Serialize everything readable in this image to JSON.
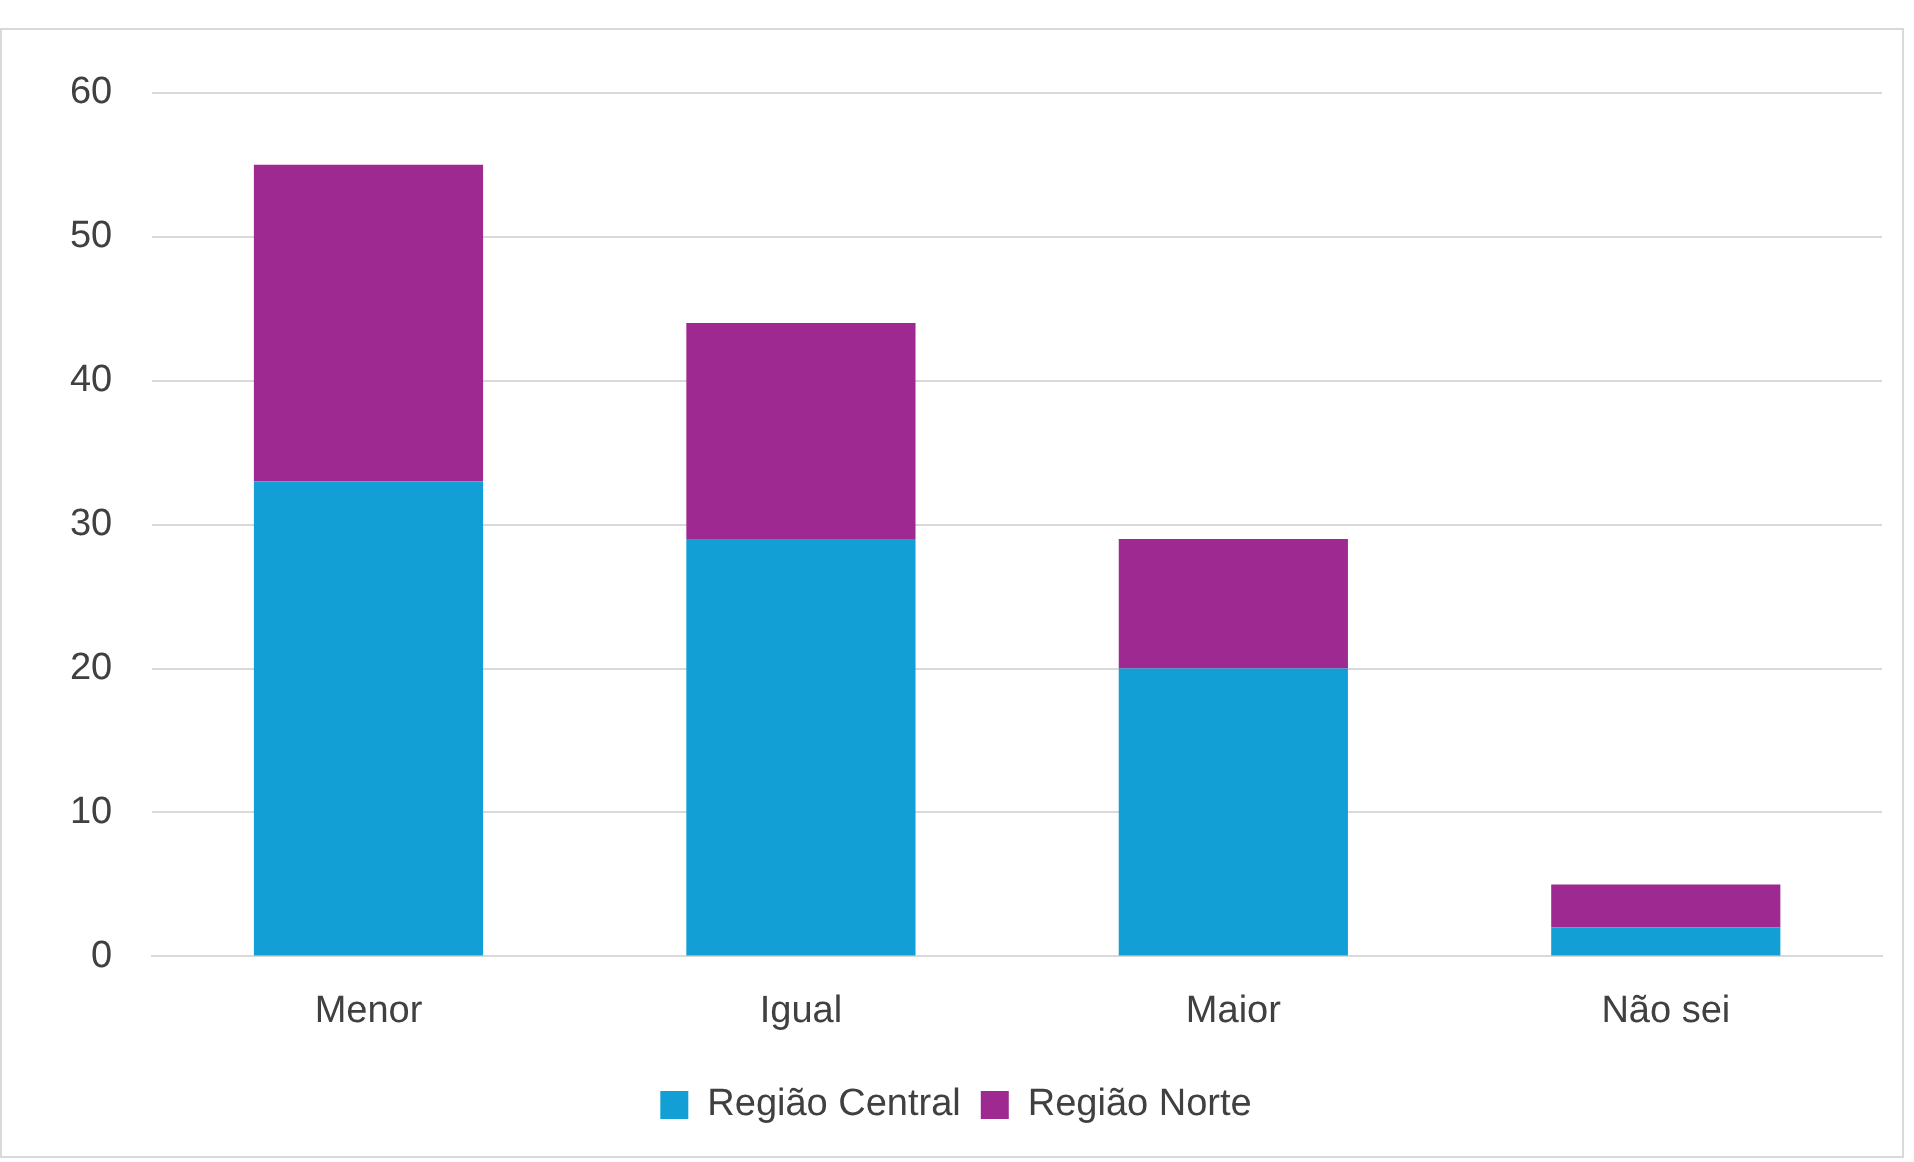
{
  "chart_data": {
    "type": "bar",
    "stacked": true,
    "categories": [
      "Menor",
      "Igual",
      "Maior",
      "Não sei"
    ],
    "series": [
      {
        "name": "Região Central",
        "color": "#119fd6",
        "values": [
          33,
          29,
          20,
          2
        ]
      },
      {
        "name": "Região Norte",
        "color": "#9e2a91",
        "values": [
          22,
          15,
          9,
          3
        ]
      }
    ],
    "ylim": [
      0,
      60
    ],
    "yticks": [
      0,
      10,
      20,
      30,
      40,
      50,
      60
    ],
    "grid": "y",
    "legend": "bottom"
  }
}
